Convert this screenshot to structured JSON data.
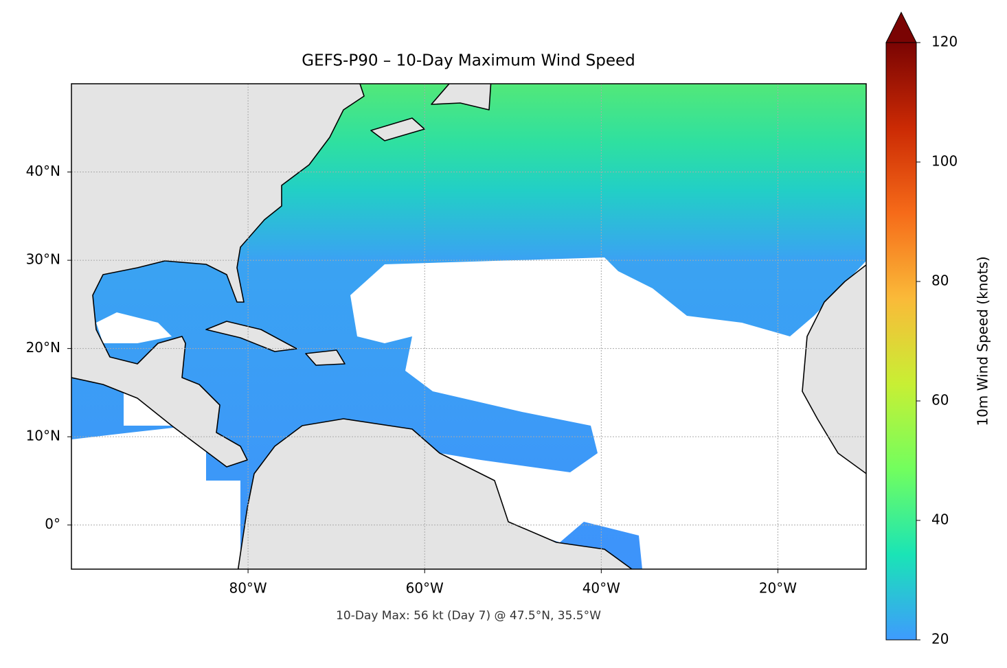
{
  "title": "GEFS-P90 – 10-Day Maximum Wind Speed",
  "footnote": "10-Day Max: 56 kt (Day 7) @ 47.5°N, 35.5°W",
  "map": {
    "xlim": [
      -100,
      -10
    ],
    "ylim": [
      -5,
      50
    ],
    "xticks": [
      {
        "value": -80,
        "label": "80°W"
      },
      {
        "value": -60,
        "label": "60°W"
      },
      {
        "value": -40,
        "label": "40°W"
      },
      {
        "value": -20,
        "label": "20°W"
      }
    ],
    "yticks": [
      {
        "value": 0,
        "label": "0°"
      },
      {
        "value": 10,
        "label": "10°N"
      },
      {
        "value": 20,
        "label": "20°N"
      },
      {
        "value": 30,
        "label": "30°N"
      },
      {
        "value": 40,
        "label": "40°N"
      }
    ],
    "grid": true
  },
  "colorbar": {
    "label": "10m Wind Speed (knots)",
    "lim": [
      20,
      120
    ],
    "ticks": [
      20,
      40,
      60,
      80,
      100,
      120
    ],
    "colors": [
      "#3e9bfe",
      "#1ae4b6",
      "#72fe5e",
      "#c8ef34",
      "#faba39",
      "#f66b19",
      "#cb2a04",
      "#7a0403"
    ],
    "extend": "max"
  }
}
